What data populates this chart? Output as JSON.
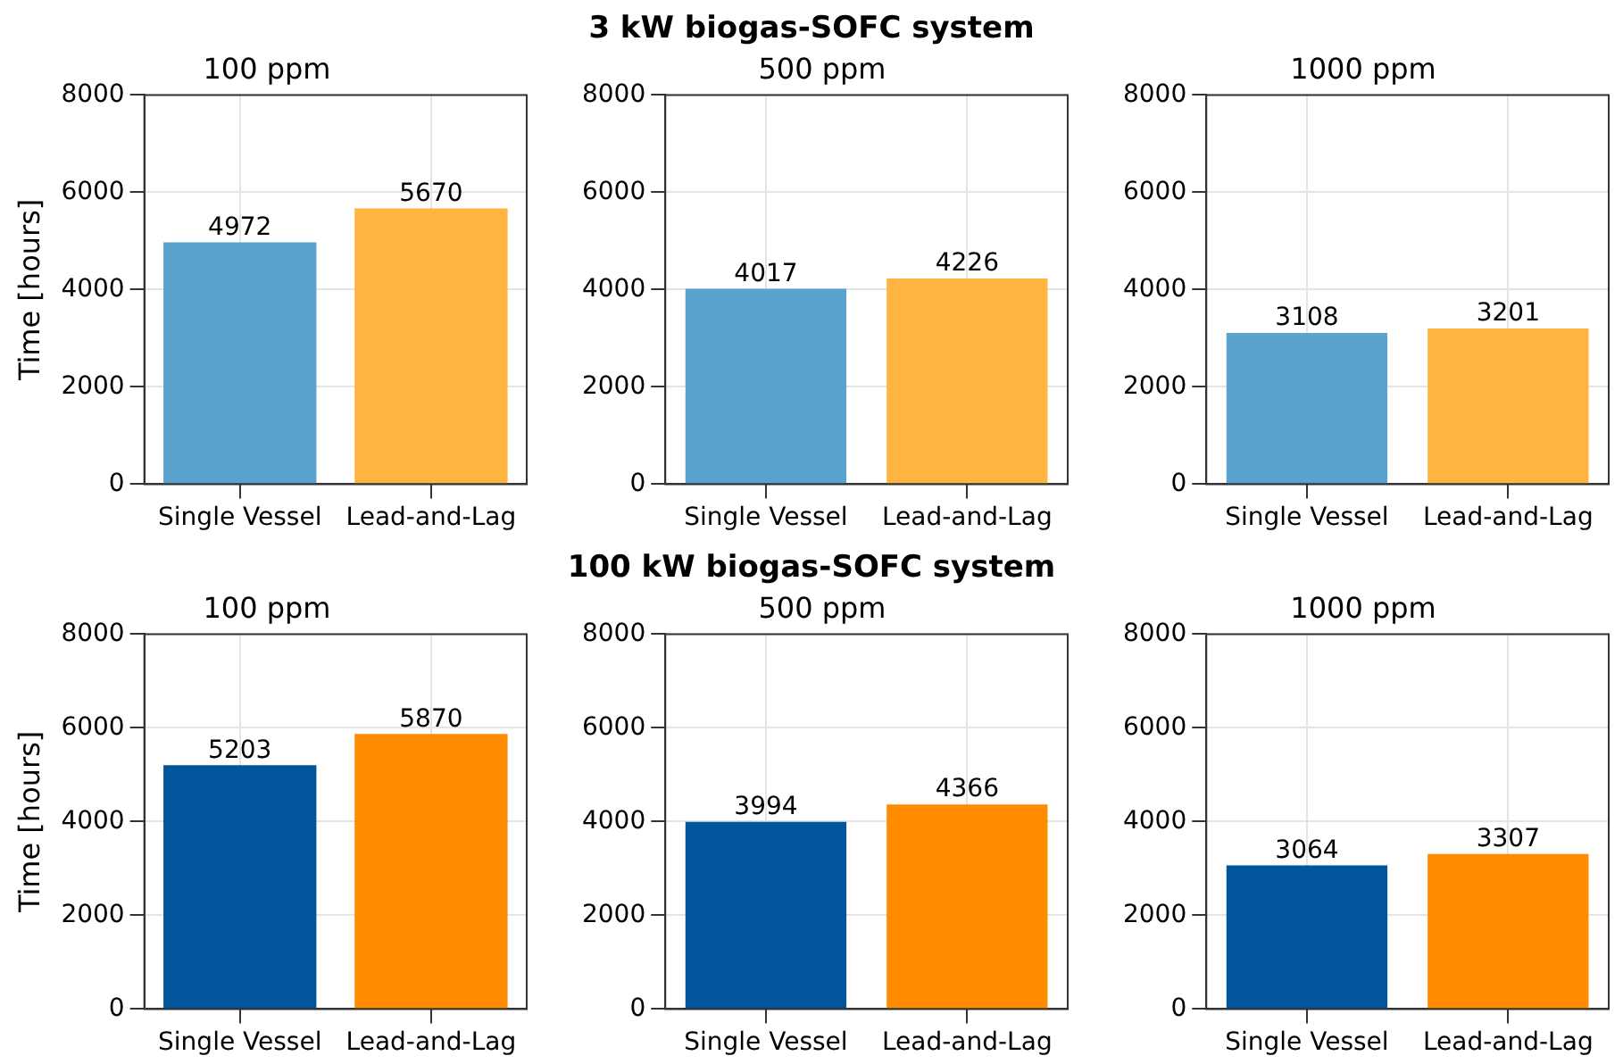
{
  "chart_data": [
    {
      "type": "bar",
      "title": "100 ppm",
      "annotations": [
        "3 kW biogas-SOFC system"
      ],
      "ylabel": "Time [hours]",
      "categories": [
        "Single Vessel",
        "Lead-and-Lag"
      ],
      "values": [
        4972,
        5670
      ],
      "colors": [
        "#5ba3cf",
        "#ffb340"
      ],
      "ylim": [
        0,
        8000
      ],
      "yticks": [
        0,
        2000,
        4000,
        6000,
        8000
      ],
      "grid": true,
      "data_labels": true
    },
    {
      "type": "bar",
      "title": "500 ppm",
      "categories": [
        "Single Vessel",
        "Lead-and-Lag"
      ],
      "values": [
        4017,
        4226
      ],
      "colors": [
        "#5ba3cf",
        "#ffb340"
      ],
      "ylim": [
        0,
        8000
      ],
      "yticks": [
        0,
        2000,
        4000,
        6000,
        8000
      ],
      "grid": true,
      "data_labels": true
    },
    {
      "type": "bar",
      "title": "1000 ppm",
      "categories": [
        "Single Vessel",
        "Lead-and-Lag"
      ],
      "values": [
        3108,
        3201
      ],
      "colors": [
        "#5ba3cf",
        "#ffb340"
      ],
      "ylim": [
        0,
        8000
      ],
      "yticks": [
        0,
        2000,
        4000,
        6000,
        8000
      ],
      "grid": true,
      "data_labels": true
    },
    {
      "type": "bar",
      "title": "100 ppm",
      "annotations": [
        "100 kW biogas-SOFC system"
      ],
      "ylabel": "Time [hours]",
      "categories": [
        "Single Vessel",
        "Lead-and-Lag"
      ],
      "values": [
        5203,
        5870
      ],
      "colors": [
        "#00559b",
        "#ff8c00"
      ],
      "ylim": [
        0,
        8000
      ],
      "yticks": [
        0,
        2000,
        4000,
        6000,
        8000
      ],
      "grid": true,
      "data_labels": true
    },
    {
      "type": "bar",
      "title": "500 ppm",
      "categories": [
        "Single Vessel",
        "Lead-and-Lag"
      ],
      "values": [
        3994,
        4366
      ],
      "colors": [
        "#00559b",
        "#ff8c00"
      ],
      "ylim": [
        0,
        8000
      ],
      "yticks": [
        0,
        2000,
        4000,
        6000,
        8000
      ],
      "grid": true,
      "data_labels": true
    },
    {
      "type": "bar",
      "title": "1000 ppm",
      "categories": [
        "Single Vessel",
        "Lead-and-Lag"
      ],
      "values": [
        3064,
        3307
      ],
      "colors": [
        "#00559b",
        "#ff8c00"
      ],
      "ylim": [
        0,
        8000
      ],
      "yticks": [
        0,
        2000,
        4000,
        6000,
        8000
      ],
      "grid": true,
      "data_labels": true
    }
  ]
}
